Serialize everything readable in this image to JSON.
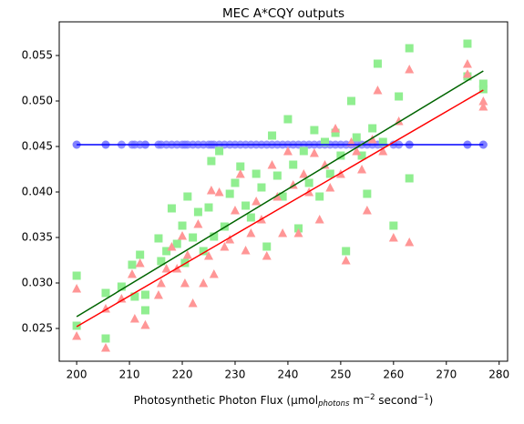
{
  "chart_data": {
    "type": "scatter",
    "title": "MEC A*CQY outputs",
    "xlabel_parts": [
      "Photosynthetic Photon Flux (µmol",
      "photons",
      " m",
      "−2",
      " second",
      "−1",
      ")"
    ],
    "xlim": [
      196.7,
      281.6
    ],
    "ylim": [
      0.0214,
      0.0587
    ],
    "xticks": [
      200,
      210,
      220,
      230,
      240,
      250,
      260,
      270,
      280
    ],
    "yticks": [
      0.025,
      {
        "value": 0.03,
        "label": "0.030"
      },
      0.035,
      {
        "value": 0.04,
        "label": "0.040"
      },
      0.045,
      {
        "value": 0.05,
        "label": "0.050"
      },
      0.055
    ],
    "series": [
      {
        "marker": "o",
        "color": "#7b7bff",
        "x": [
          200,
          200,
          205.5,
          205.5,
          208.5,
          210.5,
          211,
          212,
          213,
          213,
          215.5,
          216,
          217,
          218,
          219,
          220,
          220.5,
          221,
          222,
          223,
          224,
          225,
          225.5,
          226,
          227,
          228,
          229,
          230,
          231,
          232,
          233,
          234,
          235,
          236,
          237,
          238,
          239,
          240,
          241,
          242,
          243,
          244,
          245,
          246,
          247,
          248,
          249,
          250,
          251,
          252,
          253,
          254,
          255,
          256,
          257,
          258,
          260,
          261,
          263,
          263,
          274,
          274,
          277,
          277
        ],
        "values": [
          0.0452,
          0.0452,
          0.0452,
          0.0452,
          0.0452,
          0.0452,
          0.0452,
          0.0452,
          0.0452,
          0.0452,
          0.0452,
          0.0452,
          0.0452,
          0.0452,
          0.0452,
          0.0452,
          0.0452,
          0.0452,
          0.0452,
          0.0452,
          0.0452,
          0.0452,
          0.0452,
          0.0452,
          0.0452,
          0.0452,
          0.0452,
          0.0452,
          0.0452,
          0.0452,
          0.0452,
          0.0452,
          0.0452,
          0.0452,
          0.0452,
          0.0452,
          0.0452,
          0.0452,
          0.0452,
          0.0452,
          0.0452,
          0.0452,
          0.0452,
          0.0452,
          0.0452,
          0.0452,
          0.0452,
          0.0452,
          0.0452,
          0.0452,
          0.0452,
          0.0452,
          0.0452,
          0.0452,
          0.0452,
          0.0452,
          0.0452,
          0.0452,
          0.0452,
          0.0452,
          0.0452,
          0.0452,
          0.0452,
          0.0452
        ]
      },
      {
        "marker": "s",
        "color": "#90ee90",
        "x": [
          200,
          200,
          205.5,
          205.5,
          208.5,
          210.5,
          211,
          212,
          213,
          213,
          215.5,
          216,
          217,
          218,
          219,
          220,
          220.5,
          221,
          222,
          223,
          224,
          225,
          225.5,
          226,
          227,
          228,
          229,
          230,
          231,
          232,
          233,
          234,
          235,
          236,
          237,
          238,
          239,
          240,
          241,
          242,
          243,
          244,
          245,
          246,
          247,
          248,
          249,
          250,
          251,
          252,
          253,
          254,
          255,
          256,
          257,
          258,
          260,
          261,
          263,
          263,
          274,
          274,
          277,
          277
        ],
        "values": [
          0.0308,
          0.0253,
          0.0289,
          0.0239,
          0.0296,
          0.032,
          0.0285,
          0.0331,
          0.0287,
          0.027,
          0.0349,
          0.0324,
          0.0335,
          0.0382,
          0.0343,
          0.0363,
          0.0322,
          0.0395,
          0.035,
          0.0378,
          0.0335,
          0.0383,
          0.0434,
          0.0351,
          0.0445,
          0.0362,
          0.0398,
          0.041,
          0.0428,
          0.0385,
          0.0372,
          0.042,
          0.0405,
          0.034,
          0.0462,
          0.0418,
          0.0395,
          0.048,
          0.043,
          0.036,
          0.0445,
          0.041,
          0.0468,
          0.0395,
          0.0455,
          0.042,
          0.0465,
          0.044,
          0.0335,
          0.05,
          0.046,
          0.044,
          0.0398,
          0.047,
          0.0541,
          0.0455,
          0.0363,
          0.0505,
          0.0558,
          0.0415,
          0.0563,
          0.0527,
          0.0519,
          0.0513
        ]
      },
      {
        "marker": "^",
        "color": "#ff9696",
        "x": [
          200,
          200,
          205.5,
          205.5,
          208.5,
          210.5,
          211,
          212,
          213,
          213,
          215.5,
          216,
          217,
          218,
          219,
          220,
          220.5,
          221,
          222,
          223,
          224,
          225,
          225.5,
          226,
          227,
          228,
          229,
          230,
          231,
          232,
          233,
          234,
          235,
          236,
          237,
          238,
          239,
          240,
          241,
          242,
          243,
          244,
          245,
          246,
          247,
          248,
          249,
          250,
          251,
          252,
          253,
          254,
          255,
          256,
          257,
          258,
          260,
          261,
          263,
          263,
          274,
          274,
          277,
          277
        ],
        "values": [
          0.0294,
          0.0242,
          0.0272,
          0.0229,
          0.0283,
          0.031,
          0.0261,
          0.0322,
          0.0254,
          0.0254,
          0.0287,
          0.03,
          0.0316,
          0.034,
          0.0316,
          0.0352,
          0.03,
          0.0331,
          0.0278,
          0.0365,
          0.03,
          0.033,
          0.0402,
          0.031,
          0.04,
          0.034,
          0.0348,
          0.038,
          0.042,
          0.0336,
          0.0355,
          0.039,
          0.037,
          0.033,
          0.043,
          0.0395,
          0.0355,
          0.0445,
          0.0408,
          0.0355,
          0.042,
          0.04,
          0.0443,
          0.037,
          0.043,
          0.0405,
          0.047,
          0.042,
          0.0325,
          0.0455,
          0.0445,
          0.0425,
          0.038,
          0.0458,
          0.0512,
          0.0445,
          0.035,
          0.0478,
          0.0535,
          0.0345,
          0.0541,
          0.053,
          0.05,
          0.0494
        ]
      },
      {
        "mode": "line",
        "color": "#0000ff",
        "x": [
          200,
          277
        ],
        "values": [
          0.0452,
          0.0452
        ]
      },
      {
        "mode": "line",
        "color": "#006400",
        "x": [
          200,
          277
        ],
        "values": [
          0.0263,
          0.0533
        ]
      },
      {
        "mode": "line",
        "color": "#ff0000",
        "x": [
          200,
          277
        ],
        "values": [
          0.0252,
          0.0512
        ]
      }
    ]
  }
}
